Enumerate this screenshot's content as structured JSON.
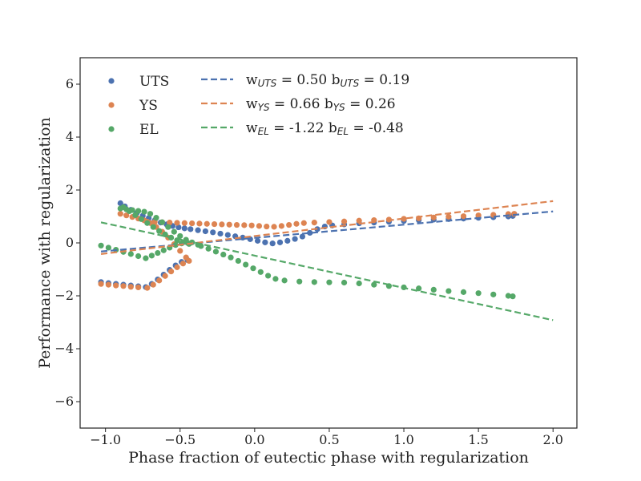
{
  "chart_data": {
    "type": "scatter",
    "title": "",
    "xlabel": "Phase fraction of eutectic phase with regularization",
    "ylabel": "Performance with regularization",
    "xlim": [
      -1.17,
      2.16
    ],
    "ylim": [
      -7,
      7
    ],
    "xticks": [
      -1.0,
      -0.5,
      0.0,
      0.5,
      1.0,
      1.5,
      2.0
    ],
    "xtick_labels": [
      "−1.0",
      "−0.5",
      "0.0",
      "0.5",
      "1.0",
      "1.5",
      "2.0"
    ],
    "yticks": [
      -6,
      -4,
      -2,
      0,
      2,
      4,
      6
    ],
    "ytick_labels": [
      "−6",
      "−4",
      "−2",
      "0",
      "2",
      "4",
      "6"
    ],
    "grid": false,
    "legend_position": "top-left",
    "series": [
      {
        "name": "UTS",
        "color": "#4c72b0",
        "points": [
          [
            -1.03,
            -1.48
          ],
          [
            -0.98,
            -1.52
          ],
          [
            -0.93,
            -1.55
          ],
          [
            -0.88,
            -1.58
          ],
          [
            -0.83,
            -1.61
          ],
          [
            -0.78,
            -1.64
          ],
          [
            -0.73,
            -1.67
          ],
          [
            -0.69,
            -1.55
          ],
          [
            -0.65,
            -1.38
          ],
          [
            -0.61,
            -1.2
          ],
          [
            -0.57,
            -1.02
          ],
          [
            -0.53,
            -0.85
          ],
          [
            -0.49,
            -0.72
          ],
          [
            -0.45,
            -0.65
          ],
          [
            -0.9,
            1.5
          ],
          [
            -0.87,
            1.38
          ],
          [
            -0.83,
            1.25
          ],
          [
            -0.79,
            1.13
          ],
          [
            -0.75,
            1.03
          ],
          [
            -0.71,
            0.94
          ],
          [
            -0.67,
            0.85
          ],
          [
            -0.63,
            0.77
          ],
          [
            -0.59,
            0.7
          ],
          [
            -0.55,
            0.64
          ],
          [
            -0.51,
            0.59
          ],
          [
            -0.47,
            0.55
          ],
          [
            -0.43,
            0.52
          ],
          [
            -0.38,
            0.48
          ],
          [
            -0.33,
            0.44
          ],
          [
            -0.28,
            0.4
          ],
          [
            -0.23,
            0.35
          ],
          [
            -0.18,
            0.3
          ],
          [
            -0.13,
            0.25
          ],
          [
            -0.08,
            0.2
          ],
          [
            -0.03,
            0.14
          ],
          [
            0.02,
            0.08
          ],
          [
            0.07,
            0.02
          ],
          [
            0.12,
            -0.02
          ],
          [
            0.17,
            0.02
          ],
          [
            0.22,
            0.08
          ],
          [
            0.27,
            0.15
          ],
          [
            0.32,
            0.24
          ],
          [
            0.37,
            0.38
          ],
          [
            0.42,
            0.52
          ],
          [
            0.47,
            0.62
          ],
          [
            0.52,
            0.66
          ],
          [
            0.6,
            0.7
          ],
          [
            0.7,
            0.74
          ],
          [
            0.8,
            0.77
          ],
          [
            0.9,
            0.8
          ],
          [
            1.0,
            0.83
          ],
          [
            1.1,
            0.86
          ],
          [
            1.2,
            0.88
          ],
          [
            1.3,
            0.9
          ],
          [
            1.4,
            0.92
          ],
          [
            1.5,
            0.95
          ],
          [
            1.6,
            0.97
          ],
          [
            1.7,
            1.0
          ],
          [
            1.73,
            1.02
          ]
        ]
      },
      {
        "name": "YS",
        "color": "#dd8452",
        "points": [
          [
            -1.03,
            -1.55
          ],
          [
            -0.98,
            -1.58
          ],
          [
            -0.93,
            -1.61
          ],
          [
            -0.88,
            -1.63
          ],
          [
            -0.83,
            -1.66
          ],
          [
            -0.78,
            -1.68
          ],
          [
            -0.72,
            -1.7
          ],
          [
            -0.68,
            -1.58
          ],
          [
            -0.64,
            -1.42
          ],
          [
            -0.6,
            -1.25
          ],
          [
            -0.56,
            -1.08
          ],
          [
            -0.52,
            -0.92
          ],
          [
            -0.48,
            -0.78
          ],
          [
            -0.44,
            -0.68
          ],
          [
            -0.46,
            -0.55
          ],
          [
            -0.5,
            -0.3
          ],
          [
            -0.54,
            -0.05
          ],
          [
            -0.58,
            0.2
          ],
          [
            -0.62,
            0.42
          ],
          [
            -0.66,
            0.6
          ],
          [
            -0.7,
            0.75
          ],
          [
            -0.74,
            0.85
          ],
          [
            -0.78,
            0.92
          ],
          [
            -0.82,
            0.98
          ],
          [
            -0.86,
            1.04
          ],
          [
            -0.9,
            1.1
          ],
          [
            -0.72,
            0.8
          ],
          [
            -0.67,
            0.79
          ],
          [
            -0.62,
            0.78
          ],
          [
            -0.57,
            0.77
          ],
          [
            -0.52,
            0.76
          ],
          [
            -0.47,
            0.75
          ],
          [
            -0.42,
            0.74
          ],
          [
            -0.37,
            0.73
          ],
          [
            -0.32,
            0.72
          ],
          [
            -0.27,
            0.71
          ],
          [
            -0.22,
            0.7
          ],
          [
            -0.17,
            0.69
          ],
          [
            -0.12,
            0.68
          ],
          [
            -0.07,
            0.67
          ],
          [
            -0.02,
            0.66
          ],
          [
            0.03,
            0.64
          ],
          [
            0.08,
            0.62
          ],
          [
            0.13,
            0.61
          ],
          [
            0.18,
            0.64
          ],
          [
            0.23,
            0.68
          ],
          [
            0.28,
            0.72
          ],
          [
            0.33,
            0.75
          ],
          [
            0.4,
            0.77
          ],
          [
            0.5,
            0.79
          ],
          [
            0.6,
            0.81
          ],
          [
            0.7,
            0.84
          ],
          [
            0.8,
            0.86
          ],
          [
            0.9,
            0.88
          ],
          [
            1.0,
            0.91
          ],
          [
            1.1,
            0.93
          ],
          [
            1.2,
            0.96
          ],
          [
            1.3,
            0.99
          ],
          [
            1.4,
            1.01
          ],
          [
            1.5,
            1.04
          ],
          [
            1.6,
            1.06
          ],
          [
            1.7,
            1.09
          ],
          [
            1.74,
            1.1
          ]
        ]
      },
      {
        "name": "EL",
        "color": "#55a868",
        "points": [
          [
            -1.03,
            -0.1
          ],
          [
            -0.98,
            -0.18
          ],
          [
            -0.93,
            -0.26
          ],
          [
            -0.88,
            -0.34
          ],
          [
            -0.83,
            -0.42
          ],
          [
            -0.78,
            -0.5
          ],
          [
            -0.73,
            -0.58
          ],
          [
            -0.69,
            -0.48
          ],
          [
            -0.65,
            -0.38
          ],
          [
            -0.61,
            -0.28
          ],
          [
            -0.57,
            -0.18
          ],
          [
            -0.53,
            -0.08
          ],
          [
            -0.49,
            -0.02
          ],
          [
            -0.45,
            0.0
          ],
          [
            -0.9,
            1.3
          ],
          [
            -0.86,
            1.27
          ],
          [
            -0.82,
            1.24
          ],
          [
            -0.78,
            1.21
          ],
          [
            -0.74,
            1.18
          ],
          [
            -0.7,
            1.1
          ],
          [
            -0.66,
            0.95
          ],
          [
            -0.62,
            0.78
          ],
          [
            -0.58,
            0.6
          ],
          [
            -0.54,
            0.42
          ],
          [
            -0.5,
            0.26
          ],
          [
            -0.46,
            0.12
          ],
          [
            -0.42,
            0.02
          ],
          [
            -0.38,
            -0.07
          ],
          [
            -0.88,
            1.35
          ],
          [
            -0.84,
            1.2
          ],
          [
            -0.8,
            1.05
          ],
          [
            -0.76,
            0.9
          ],
          [
            -0.72,
            0.75
          ],
          [
            -0.68,
            0.6
          ],
          [
            -0.64,
            0.45
          ],
          [
            -0.6,
            0.32
          ],
          [
            -0.56,
            0.2
          ],
          [
            -0.52,
            0.1
          ],
          [
            -0.48,
            0.02
          ],
          [
            -0.44,
            -0.04
          ],
          [
            -0.36,
            -0.12
          ],
          [
            -0.31,
            -0.22
          ],
          [
            -0.26,
            -0.33
          ],
          [
            -0.21,
            -0.44
          ],
          [
            -0.16,
            -0.55
          ],
          [
            -0.11,
            -0.68
          ],
          [
            -0.06,
            -0.82
          ],
          [
            -0.01,
            -0.96
          ],
          [
            0.04,
            -1.1
          ],
          [
            0.09,
            -1.24
          ],
          [
            0.14,
            -1.36
          ],
          [
            0.2,
            -1.42
          ],
          [
            0.3,
            -1.46
          ],
          [
            0.4,
            -1.48
          ],
          [
            0.5,
            -1.49
          ],
          [
            0.6,
            -1.5
          ],
          [
            0.7,
            -1.53
          ],
          [
            0.8,
            -1.58
          ],
          [
            0.9,
            -1.63
          ],
          [
            1.0,
            -1.68
          ],
          [
            1.1,
            -1.72
          ],
          [
            1.2,
            -1.77
          ],
          [
            1.3,
            -1.82
          ],
          [
            1.4,
            -1.86
          ],
          [
            1.5,
            -1.9
          ],
          [
            1.6,
            -1.95
          ],
          [
            1.7,
            -2.0
          ],
          [
            1.73,
            -2.02
          ]
        ]
      }
    ],
    "fits": [
      {
        "name": "UTS",
        "color": "#4c72b0",
        "w": 0.5,
        "b": 0.19,
        "x_range": [
          -1.03,
          2.0
        ],
        "label_w": "w",
        "label_w_sub": "UTS",
        "label_w_val": " = 0.50",
        "label_b": "b",
        "label_b_sub": "UTS",
        "label_b_val": " = 0.19"
      },
      {
        "name": "YS",
        "color": "#dd8452",
        "w": 0.66,
        "b": 0.26,
        "x_range": [
          -1.03,
          2.0
        ],
        "label_w": "w",
        "label_w_sub": "YS",
        "label_w_val": " = 0.66",
        "label_b": "b",
        "label_b_sub": "YS",
        "label_b_val": " = 0.26"
      },
      {
        "name": "EL",
        "color": "#55a868",
        "w": -1.22,
        "b": -0.48,
        "x_range": [
          -1.03,
          2.0
        ],
        "label_w": "w",
        "label_w_sub": "EL",
        "label_w_val": " = -1.22",
        "label_b": "b",
        "label_b_sub": "EL",
        "label_b_val": " = -0.48"
      }
    ]
  }
}
